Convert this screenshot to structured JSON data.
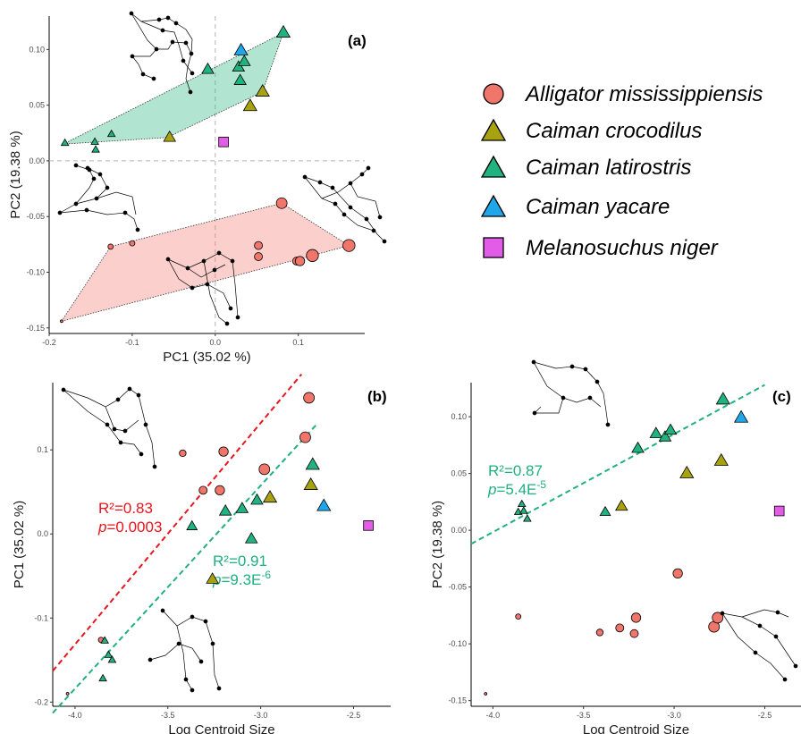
{
  "colors": {
    "Alligator mississippiensis": "#f0766c",
    "Caiman crocodilus": "#a8a211",
    "Caiman latirostris": "#21b37f",
    "Caiman yacare": "#1ea8ea",
    "Melanosuchus niger": "#e35ce8",
    "red_fit": "#e8141e",
    "green_fit": "#1fb07e"
  },
  "legend": [
    {
      "name": "Alligator mississippiensis",
      "marker": "circle"
    },
    {
      "name": "Caiman crocodilus",
      "marker": "triangle"
    },
    {
      "name": "Caiman latirostris",
      "marker": "triangle"
    },
    {
      "name": "Caiman yacare",
      "marker": "triangle"
    },
    {
      "name": "Melanosuchus niger",
      "marker": "square"
    }
  ],
  "chart_data": [
    {
      "id": "a",
      "panel_label": "(a)",
      "type": "scatter",
      "xlabel": "PC1 (35.02 %)",
      "ylabel": "PC2 (19.38 %)",
      "xlim": [
        -0.2,
        0.18
      ],
      "ylim": [
        -0.155,
        0.13
      ],
      "xticks": [
        -0.2,
        -0.1,
        0.0,
        0.1
      ],
      "xtick_labels": [
        "-0.2",
        "-0.1",
        "0.0",
        "0.1"
      ],
      "yticks": [
        -0.15,
        -0.1,
        -0.05,
        0.0,
        0.05,
        0.1
      ],
      "ytick_labels": [
        "-0.15",
        "-0.10",
        "-0.05",
        "0.00",
        "0.05",
        "0.10"
      ],
      "reference_lines": {
        "x": 0,
        "y": 0
      },
      "hulls": [
        {
          "group": "Caiman",
          "color": "#21b37f",
          "points": [
            [
              -0.183,
              0.015
            ],
            [
              0.082,
              0.115
            ],
            [
              0.057,
              0.062
            ],
            [
              -0.058,
              0.021
            ]
          ]
        },
        {
          "group": "Alligator",
          "color": "#f0766c",
          "points": [
            [
              -0.185,
              -0.144
            ],
            [
              -0.126,
              -0.077
            ],
            [
              0.08,
              -0.038
            ],
            [
              0.161,
              -0.076
            ],
            [
              0.117,
              -0.085
            ]
          ]
        }
      ],
      "series": [
        {
          "name": "Alligator mississippiensis",
          "marker": "circle",
          "points": [
            [
              -0.185,
              -0.144,
              2
            ],
            [
              -0.126,
              -0.077,
              4
            ],
            [
              -0.1,
              -0.074,
              4
            ],
            [
              0.052,
              -0.076,
              6
            ],
            [
              0.052,
              -0.086,
              6
            ],
            [
              0.08,
              -0.038,
              8
            ],
            [
              0.098,
              -0.09,
              6
            ],
            [
              0.102,
              -0.09,
              7
            ],
            [
              0.117,
              -0.085,
              9
            ],
            [
              0.161,
              -0.076,
              9
            ]
          ]
        },
        {
          "name": "Caiman crocodilus",
          "marker": "triangle",
          "points": [
            [
              -0.055,
              0.021,
              8
            ],
            [
              0.042,
              0.049,
              9
            ],
            [
              0.057,
              0.062,
              9
            ]
          ]
        },
        {
          "name": "Caiman latirostris",
          "marker": "triangle",
          "points": [
            [
              -0.181,
              0.016,
              5
            ],
            [
              -0.144,
              0.01,
              5
            ],
            [
              -0.125,
              0.024,
              5
            ],
            [
              -0.145,
              0.017,
              5
            ],
            [
              -0.009,
              0.082,
              8
            ],
            [
              0.03,
              0.072,
              8
            ],
            [
              0.028,
              0.084,
              8
            ],
            [
              0.035,
              0.089,
              8
            ],
            [
              0.082,
              0.115,
              9
            ]
          ]
        },
        {
          "name": "Caiman yacare",
          "marker": "triangle",
          "points": [
            [
              0.031,
              0.099,
              9
            ]
          ]
        },
        {
          "name": "Melanosuchus niger",
          "marker": "square",
          "points": [
            [
              0.01,
              0.017,
              9
            ]
          ]
        }
      ]
    },
    {
      "id": "b",
      "panel_label": "(b)",
      "type": "scatter",
      "xlabel": "Log Centroid Size",
      "ylabel": "PC1 (35.02 %)",
      "xlim": [
        -4.12,
        -2.3
      ],
      "ylim": [
        -0.205,
        0.18
      ],
      "xticks": [
        -4.0,
        -3.5,
        -3.0,
        -2.5
      ],
      "xtick_labels": [
        "-4.0",
        "-3.5",
        "-3.0",
        "-2.5"
      ],
      "yticks": [
        -0.2,
        -0.1,
        0.0,
        0.1
      ],
      "ytick_labels": [
        "-0.2",
        "-0.1",
        "0.0",
        "0.1"
      ],
      "fits": [
        {
          "color_key": "red_fit",
          "from": [
            -4.12,
            -0.163
          ],
          "to": [
            -2.78,
            0.19
          ],
          "r2": "R²=0.83",
          "p_label": "p",
          "p_rest": "=0.0003",
          "p_exp": ""
        },
        {
          "color_key": "green_fit",
          "from": [
            -4.12,
            -0.213
          ],
          "to": [
            -2.7,
            0.13
          ],
          "r2": "R²=0.91",
          "p_label": "p",
          "p_rest": "=9.3E",
          "p_exp": "-6"
        }
      ],
      "series": [
        {
          "name": "Alligator mississippiensis",
          "marker": "circle",
          "points": [
            [
              -4.04,
              -0.19,
              2
            ],
            [
              -3.86,
              -0.126,
              4
            ],
            [
              -3.42,
              0.096,
              5
            ],
            [
              -3.31,
              0.052,
              6
            ],
            [
              -3.2,
              0.098,
              7
            ],
            [
              -3.22,
              0.052,
              7
            ],
            [
              -2.98,
              0.077,
              8
            ],
            [
              -2.76,
              0.115,
              8
            ],
            [
              -2.74,
              0.162,
              8
            ]
          ]
        },
        {
          "name": "Caiman crocodilus",
          "marker": "triangle",
          "points": [
            [
              -3.26,
              -0.054,
              8
            ],
            [
              -2.95,
              0.043,
              9
            ],
            [
              -2.73,
              0.058,
              9
            ]
          ]
        },
        {
          "name": "Caiman latirostris",
          "marker": "triangle",
          "points": [
            [
              -3.85,
              -0.172,
              5
            ],
            [
              -3.82,
              -0.144,
              5
            ],
            [
              -3.8,
              -0.15,
              5
            ],
            [
              -3.84,
              -0.127,
              5
            ],
            [
              -3.37,
              0.009,
              7
            ],
            [
              -3.19,
              0.027,
              8
            ],
            [
              -3.1,
              0.03,
              8
            ],
            [
              -3.05,
              -0.006,
              8
            ],
            [
              -3.02,
              0.04,
              8
            ],
            [
              -2.72,
              0.082,
              9
            ]
          ]
        },
        {
          "name": "Caiman yacare",
          "marker": "triangle",
          "points": [
            [
              -2.66,
              0.033,
              9
            ]
          ]
        },
        {
          "name": "Melanosuchus niger",
          "marker": "square",
          "points": [
            [
              -2.42,
              0.01,
              9
            ]
          ]
        }
      ]
    },
    {
      "id": "c",
      "panel_label": "(c)",
      "type": "scatter",
      "xlabel": "Log Centroid Size",
      "ylabel": "PC2 (19.38 %)",
      "xlim": [
        -4.12,
        -2.3
      ],
      "ylim": [
        -0.155,
        0.13
      ],
      "xticks": [
        -4.0,
        -3.5,
        -3.0,
        -2.5
      ],
      "xtick_labels": [
        "-4.0",
        "-3.5",
        "-3.0",
        "-2.5"
      ],
      "yticks": [
        -0.15,
        -0.1,
        -0.05,
        0.0,
        0.05,
        0.1
      ],
      "ytick_labels": [
        "-0.15",
        "-0.10",
        "-0.05",
        "0.00",
        "0.05",
        "0.10"
      ],
      "fits": [
        {
          "color_key": "green_fit",
          "from": [
            -4.12,
            -0.012
          ],
          "to": [
            -2.5,
            0.128
          ],
          "r2": "R²=0.87",
          "p_label": "p",
          "p_rest": "=5.4E",
          "p_exp": "-5"
        }
      ],
      "series": [
        {
          "name": "Alligator mississippiensis",
          "marker": "circle",
          "points": [
            [
              -4.04,
              -0.144,
              2
            ],
            [
              -3.86,
              -0.076,
              4
            ],
            [
              -3.41,
              -0.09,
              5
            ],
            [
              -3.3,
              -0.086,
              6
            ],
            [
              -3.22,
              -0.091,
              6
            ],
            [
              -3.21,
              -0.077,
              7
            ],
            [
              -2.98,
              -0.038,
              7
            ],
            [
              -2.78,
              -0.085,
              8
            ],
            [
              -2.76,
              -0.077,
              8
            ]
          ]
        },
        {
          "name": "Caiman crocodilus",
          "marker": "triangle",
          "points": [
            [
              -3.29,
              0.021,
              8
            ],
            [
              -2.93,
              0.05,
              9
            ],
            [
              -2.74,
              0.061,
              9
            ]
          ]
        },
        {
          "name": "Caiman latirostris",
          "marker": "triangle",
          "points": [
            [
              -3.86,
              0.016,
              5
            ],
            [
              -3.84,
              0.023,
              5
            ],
            [
              -3.81,
              0.01,
              5
            ],
            [
              -3.83,
              0.017,
              5
            ],
            [
              -3.38,
              0.016,
              7
            ],
            [
              -3.2,
              0.072,
              8
            ],
            [
              -3.1,
              0.085,
              8
            ],
            [
              -3.05,
              0.082,
              8
            ],
            [
              -3.02,
              0.088,
              8
            ],
            [
              -2.73,
              0.115,
              9
            ]
          ]
        },
        {
          "name": "Caiman yacare",
          "marker": "triangle",
          "points": [
            [
              -2.63,
              0.099,
              9
            ]
          ]
        },
        {
          "name": "Melanosuchus niger",
          "marker": "square",
          "points": [
            [
              -2.42,
              0.017,
              9
            ]
          ]
        }
      ]
    }
  ]
}
